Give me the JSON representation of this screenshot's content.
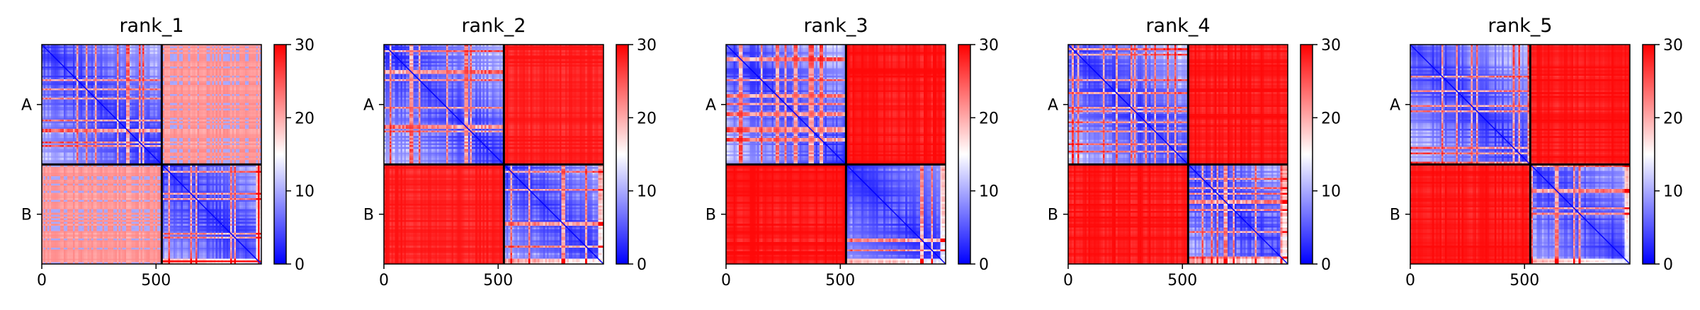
{
  "chart_data": [
    {
      "type": "heatmap",
      "title": "rank_1",
      "xticks": [
        0,
        500
      ],
      "x_range": [
        0,
        961
      ],
      "chains": [
        "A",
        "B"
      ],
      "chain_boundary": 525,
      "color_scale": {
        "min": 0,
        "max": 30,
        "ticks": [
          0,
          10,
          20,
          30
        ],
        "colormap": "bwr",
        "low": "#0000ff",
        "mid": "#ffffff",
        "high": "#ff0000"
      },
      "inter_chain_level": 22
    },
    {
      "type": "heatmap",
      "title": "rank_2",
      "xticks": [
        0,
        500
      ],
      "x_range": [
        0,
        961
      ],
      "chains": [
        "A",
        "B"
      ],
      "chain_boundary": 525,
      "color_scale": {
        "min": 0,
        "max": 30,
        "ticks": [
          0,
          10,
          20,
          30
        ],
        "colormap": "bwr",
        "low": "#0000ff",
        "mid": "#ffffff",
        "high": "#ff0000"
      },
      "inter_chain_level": 29
    },
    {
      "type": "heatmap",
      "title": "rank_3",
      "xticks": [
        0,
        500
      ],
      "x_range": [
        0,
        961
      ],
      "chains": [
        "A",
        "B"
      ],
      "chain_boundary": 525,
      "color_scale": {
        "min": 0,
        "max": 30,
        "ticks": [
          0,
          10,
          20,
          30
        ],
        "colormap": "bwr",
        "low": "#0000ff",
        "mid": "#ffffff",
        "high": "#ff0000"
      },
      "inter_chain_level": 29.5
    },
    {
      "type": "heatmap",
      "title": "rank_4",
      "xticks": [
        0,
        500
      ],
      "x_range": [
        0,
        961
      ],
      "chains": [
        "A",
        "B"
      ],
      "chain_boundary": 525,
      "color_scale": {
        "min": 0,
        "max": 30,
        "ticks": [
          0,
          10,
          20,
          30
        ],
        "colormap": "bwr",
        "low": "#0000ff",
        "mid": "#ffffff",
        "high": "#ff0000"
      },
      "inter_chain_level": 29.5
    },
    {
      "type": "heatmap",
      "title": "rank_5",
      "xticks": [
        0,
        500
      ],
      "x_range": [
        0,
        961
      ],
      "chains": [
        "A",
        "B"
      ],
      "chain_boundary": 525,
      "color_scale": {
        "min": 0,
        "max": 30,
        "ticks": [
          0,
          10,
          20,
          30
        ],
        "colormap": "bwr",
        "low": "#0000ff",
        "mid": "#ffffff",
        "high": "#ff0000"
      },
      "inter_chain_level": 29.5
    }
  ]
}
